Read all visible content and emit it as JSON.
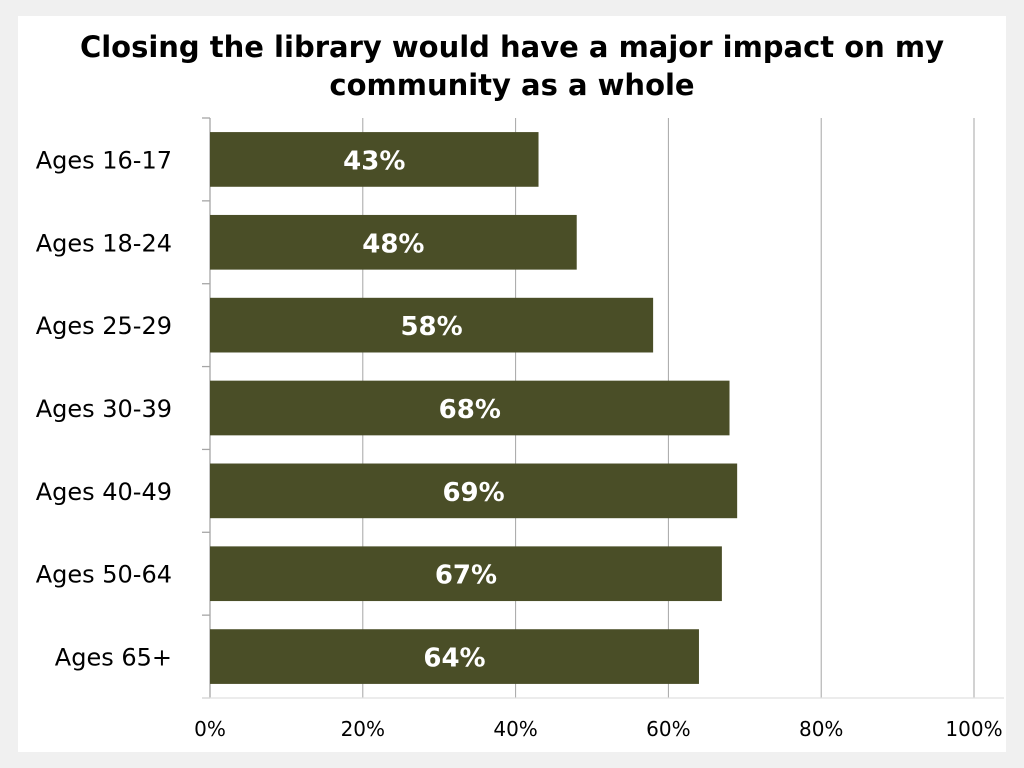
{
  "chart_data": {
    "type": "bar",
    "orientation": "horizontal",
    "title": "Closing the library would have a major impact on my community as a whole",
    "xlabel": "",
    "ylabel": "",
    "categories": [
      "Ages 16-17",
      "Ages 18-24",
      "Ages 25-29",
      "Ages 30-39",
      "Ages 40-49",
      "Ages 50-64",
      "Ages 65+"
    ],
    "values": [
      43,
      48,
      58,
      68,
      69,
      67,
      64
    ],
    "data_labels": [
      "43%",
      "48%",
      "58%",
      "68%",
      "69%",
      "67%",
      "64%"
    ],
    "xlim": [
      0,
      100
    ],
    "x_ticks": [
      0,
      20,
      40,
      60,
      80,
      100
    ],
    "x_tick_labels": [
      "0%",
      "20%",
      "40%",
      "60%",
      "80%",
      "100%"
    ],
    "grid": "vertical major gridlines",
    "legend": "none",
    "colors": {
      "bar": "#4a4e27",
      "gridline": "#a6a6a6",
      "axis": "#a6a6a6",
      "data_label": "#ffffff",
      "background": "#ffffff"
    }
  }
}
